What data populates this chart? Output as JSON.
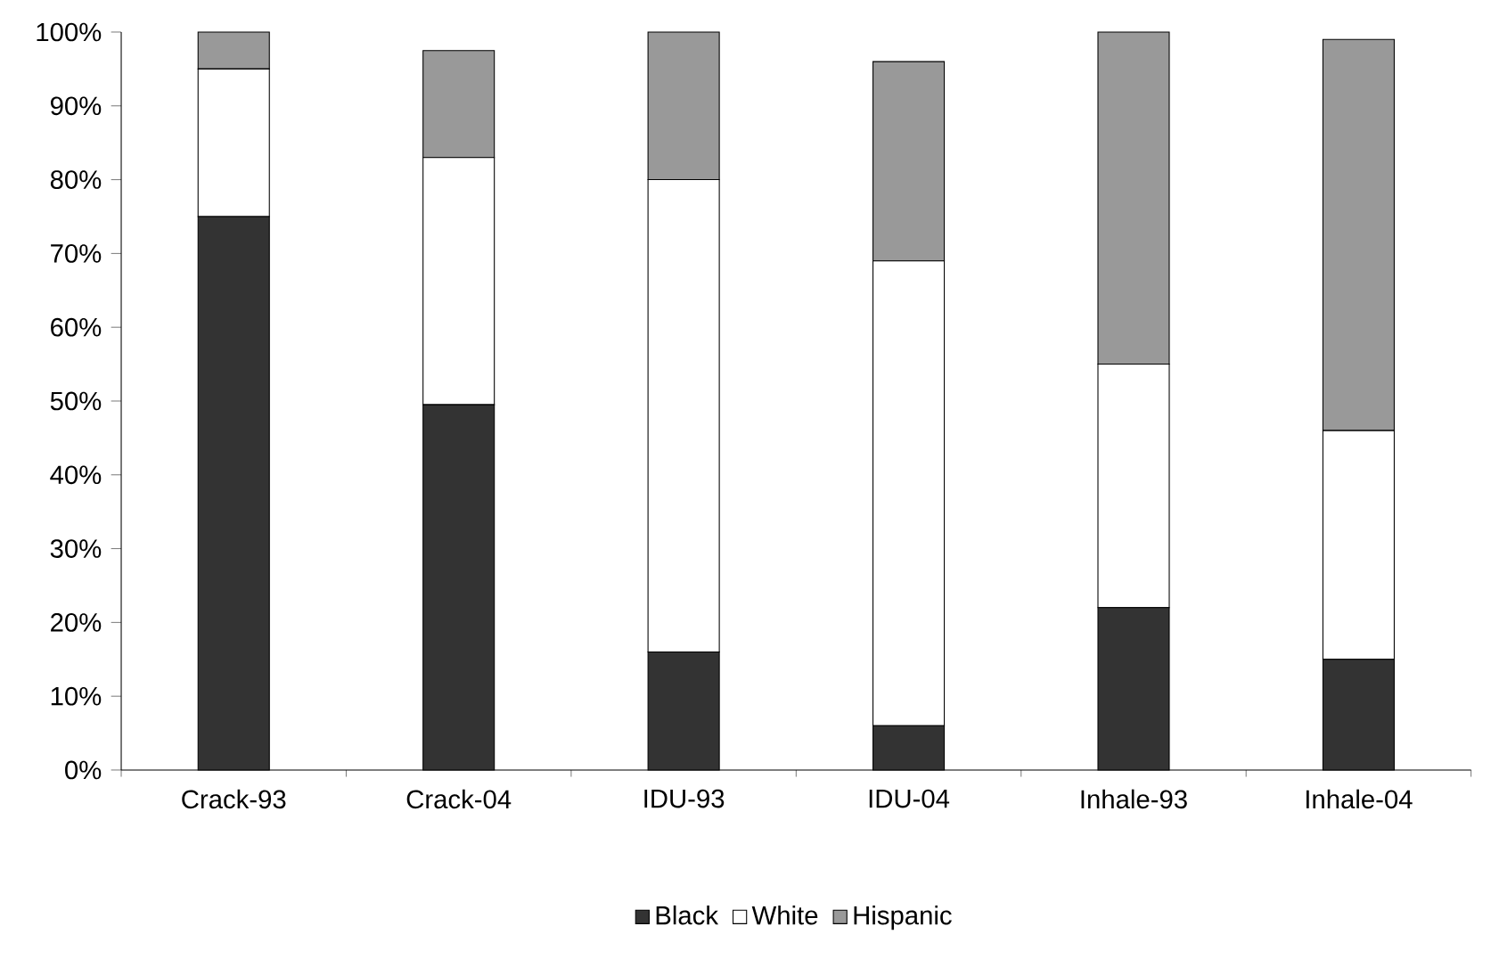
{
  "chart_data": {
    "type": "bar",
    "stacked": true,
    "categories": [
      "Crack-93",
      "Crack-04",
      "IDU-93",
      "IDU-04",
      "Inhale-93",
      "Inhale-04"
    ],
    "series": [
      {
        "name": "Black",
        "color": "#333333",
        "values": [
          75,
          49.5,
          16,
          6,
          22,
          15
        ]
      },
      {
        "name": "White",
        "color": "#ffffff",
        "values": [
          20,
          33.5,
          64,
          63,
          33,
          31
        ]
      },
      {
        "name": "Hispanic",
        "color": "#999999",
        "values": [
          5,
          14.5,
          20,
          27,
          45,
          53
        ]
      }
    ],
    "ylim": [
      0,
      100
    ],
    "yticks": [
      {
        "value": 0,
        "label": "0%"
      },
      {
        "value": 10,
        "label": "10%"
      },
      {
        "value": 20,
        "label": "20%"
      },
      {
        "value": 30,
        "label": "30%"
      },
      {
        "value": 40,
        "label": "40%"
      },
      {
        "value": 50,
        "label": "50%"
      },
      {
        "value": 60,
        "label": "60%"
      },
      {
        "value": 70,
        "label": "70%"
      },
      {
        "value": 80,
        "label": "80%"
      },
      {
        "value": 90,
        "label": "90%"
      },
      {
        "value": 100,
        "label": "100%"
      }
    ],
    "grid": false,
    "legend": "bottom"
  }
}
